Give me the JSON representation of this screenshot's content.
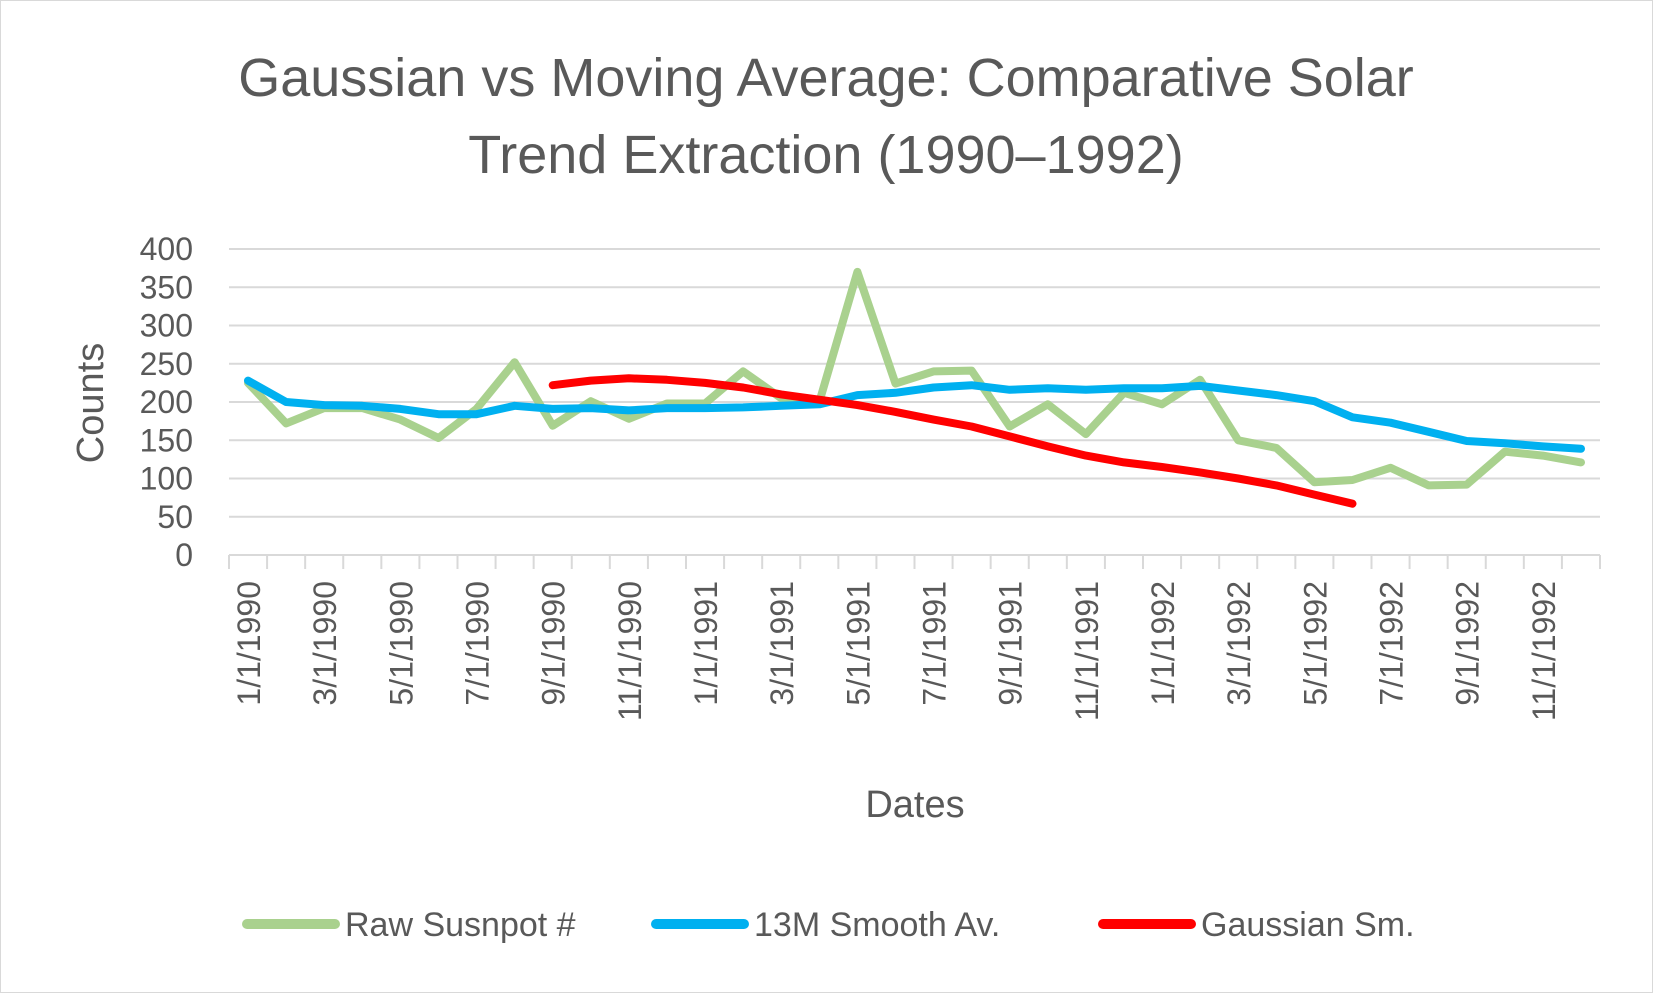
{
  "chart_data": {
    "type": "line",
    "title_lines": [
      "Gaussian vs Moving Average: Comparative Solar",
      "Trend Extraction (1990–1992)"
    ],
    "xlabel": "Dates",
    "ylabel": "Counts",
    "ylim": [
      0,
      400
    ],
    "yticks": [
      "0",
      "50",
      "100",
      "150",
      "200",
      "250",
      "300",
      "350",
      "400"
    ],
    "xtick_labels": [
      "1/1/1990",
      "3/1/1990",
      "5/1/1990",
      "7/1/1990",
      "9/1/1990",
      "11/1/1990",
      "1/1/1991",
      "3/1/1991",
      "5/1/1991",
      "7/1/1991",
      "9/1/1991",
      "11/1/1991",
      "1/1/1992",
      "3/1/1992",
      "5/1/1992",
      "7/1/1992",
      "9/1/1992",
      "11/1/1992"
    ],
    "x_count": 36,
    "grid": true,
    "legend_position": "bottom",
    "series": [
      {
        "name": "Raw Susnpot #",
        "color": "#a9d18e",
        "start_index": 0,
        "values": [
          225,
          172,
          192,
          192,
          177,
          153,
          191,
          252,
          169,
          201,
          178,
          198,
          198,
          240,
          205,
          200,
          370,
          224,
          240,
          241,
          168,
          197,
          158,
          212,
          197,
          229,
          150,
          140,
          95,
          98,
          114,
          91,
          92,
          135,
          130,
          121
        ]
      },
      {
        "name": "13M Smooth Av.",
        "color": "#00b0f0",
        "start_index": 0,
        "values": [
          228,
          200,
          196,
          195,
          191,
          184,
          184,
          195,
          191,
          192,
          189,
          192,
          192,
          193,
          195,
          197,
          209,
          212,
          219,
          222,
          216,
          218,
          216,
          218,
          218,
          221,
          215,
          209,
          201,
          180,
          173,
          161,
          149,
          146,
          142,
          139
        ]
      },
      {
        "name": "Gaussian Sm.",
        "color": "#ff0000",
        "start_index": 8,
        "values": [
          222,
          228,
          231,
          229,
          225,
          219,
          210,
          203,
          196,
          187,
          177,
          168,
          155,
          142,
          130,
          121,
          115,
          108,
          100,
          91,
          79,
          67
        ]
      }
    ]
  }
}
